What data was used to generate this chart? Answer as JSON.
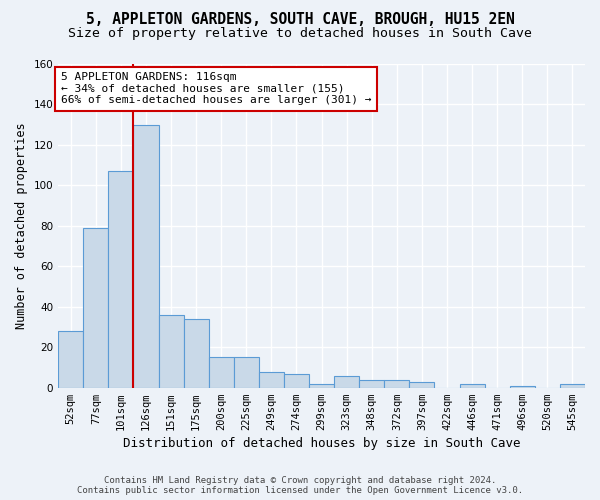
{
  "title": "5, APPLETON GARDENS, SOUTH CAVE, BROUGH, HU15 2EN",
  "subtitle": "Size of property relative to detached houses in South Cave",
  "xlabel": "Distribution of detached houses by size in South Cave",
  "ylabel": "Number of detached properties",
  "bar_categories": [
    "52sqm",
    "77sqm",
    "101sqm",
    "126sqm",
    "151sqm",
    "175sqm",
    "200sqm",
    "225sqm",
    "249sqm",
    "274sqm",
    "299sqm",
    "323sqm",
    "348sqm",
    "372sqm",
    "397sqm",
    "422sqm",
    "446sqm",
    "471sqm",
    "496sqm",
    "520sqm",
    "545sqm"
  ],
  "bar_values": [
    28,
    79,
    107,
    130,
    36,
    34,
    15,
    15,
    8,
    7,
    2,
    6,
    4,
    4,
    3,
    0,
    2,
    0,
    1,
    0,
    2
  ],
  "bar_color": "#c9d9e8",
  "bar_edge_color": "#5b9bd5",
  "vline_x": 2.5,
  "annotation_label": "5 APPLETON GARDENS: 116sqm",
  "annotation_line1": "← 34% of detached houses are smaller (155)",
  "annotation_line2": "66% of semi-detached houses are larger (301) →",
  "vline_color": "#cc0000",
  "ylim": [
    0,
    160
  ],
  "yticks": [
    0,
    20,
    40,
    60,
    80,
    100,
    120,
    140,
    160
  ],
  "footer_line1": "Contains HM Land Registry data © Crown copyright and database right 2024.",
  "footer_line2": "Contains public sector information licensed under the Open Government Licence v3.0.",
  "bg_color": "#edf2f8",
  "plot_bg_color": "#edf2f8",
  "title_fontsize": 10.5,
  "subtitle_fontsize": 9.5,
  "axis_label_fontsize": 8.5,
  "tick_fontsize": 7.5,
  "annotation_fontsize": 8,
  "annotation_box_edge_color": "#cc0000",
  "grid_color": "#ffffff"
}
